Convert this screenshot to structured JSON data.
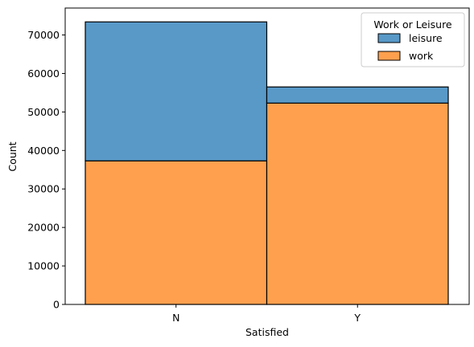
{
  "chart_data": {
    "type": "bar",
    "stacked": true,
    "categories": [
      "N",
      "Y"
    ],
    "series": [
      {
        "name": "work",
        "values": [
          37300,
          52300
        ],
        "color": "#ffa04e"
      },
      {
        "name": "leisure",
        "values": [
          36100,
          4200
        ],
        "color": "#5899c8"
      }
    ],
    "xlabel": "Satisfied",
    "ylabel": "Count",
    "ylim": [
      0,
      77000
    ],
    "yticks": [
      0,
      10000,
      20000,
      30000,
      40000,
      50000,
      60000,
      70000
    ],
    "grid": false,
    "legend": {
      "title": "Work or Leisure",
      "placement": "top-right",
      "entries": [
        {
          "label": "leisure",
          "color": "#5899c8"
        },
        {
          "label": "work",
          "color": "#ffa04e"
        }
      ]
    }
  }
}
